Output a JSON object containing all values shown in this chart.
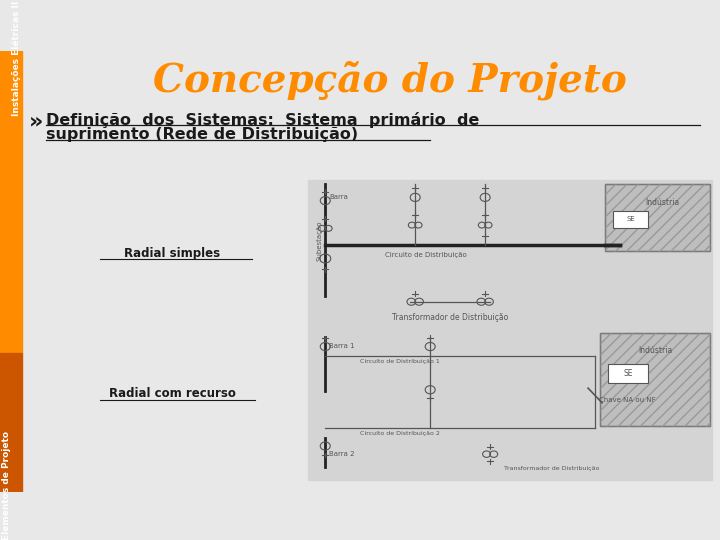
{
  "title": "Concepção do Projeto",
  "title_color": "#FF8C00",
  "title_fontsize": 28,
  "sidebar_top_text": "Instalações Elétricas II",
  "sidebar_bottom_text": "Elementos de Projeto",
  "sidebar_color_top": "#FF8C00",
  "sidebar_color_bottom": "#CC5500",
  "bullet": "»",
  "subtitle_line1": "Definição  dos  Sistemas:  Sistema  primário  de",
  "subtitle_line2": "suprimento (Rede de Distribuição)",
  "label_radial_simples": "Radial simples",
  "label_radial_recurso": "Radial com recurso",
  "bg_color": "#E8E8E8",
  "diagram_bg": "#D4D4D4",
  "text_color": "#1a1a1a",
  "lc": "#555555",
  "lc_dark": "#222222"
}
